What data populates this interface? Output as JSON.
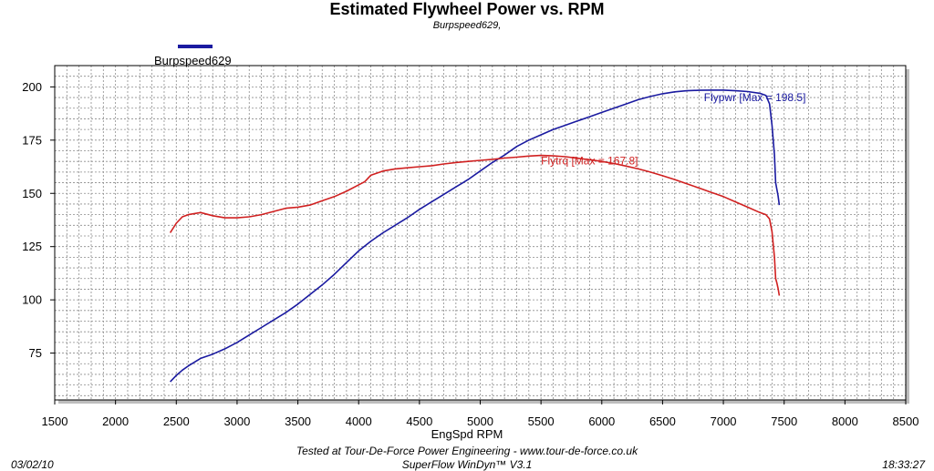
{
  "chart_data": {
    "type": "line",
    "title": "Estimated Flywheel Power vs. RPM",
    "subtitle": "Burpspeed629,",
    "xlabel": "EngSpd RPM",
    "ylabel": "",
    "xlim": [
      1500,
      8500
    ],
    "ylim": [
      53,
      210
    ],
    "xticks": [
      1500,
      2000,
      2500,
      3000,
      3500,
      4000,
      4500,
      5000,
      5500,
      6000,
      6500,
      7000,
      7500,
      8000,
      8500
    ],
    "yticks": [
      75,
      100,
      125,
      150,
      175,
      200
    ],
    "grid": true,
    "legend": {
      "position": "top-left",
      "entries": [
        {
          "label": "Burpspeed629",
          "color": "#1a1aa0"
        }
      ]
    },
    "series": [
      {
        "key": "power",
        "color": "#1a1aa0",
        "annotation": "Flypwr [Max = 198.5]",
        "x": [
          2450,
          2500,
          2550,
          2600,
          2700,
          2800,
          2900,
          3000,
          3100,
          3200,
          3300,
          3400,
          3500,
          3600,
          3700,
          3800,
          3900,
          4000,
          4100,
          4200,
          4300,
          4400,
          4500,
          4600,
          4700,
          4800,
          4900,
          5000,
          5100,
          5200,
          5300,
          5400,
          5500,
          5600,
          5700,
          5800,
          5900,
          6000,
          6100,
          6200,
          6300,
          6400,
          6500,
          6600,
          6700,
          6800,
          6900,
          7000,
          7100,
          7200,
          7300,
          7350,
          7380,
          7400,
          7420,
          7430,
          7440,
          7450,
          7460
        ],
        "values": [
          61.5,
          64.5,
          67,
          69,
          72.5,
          74.5,
          77,
          80,
          83.5,
          87,
          90.5,
          94,
          98,
          102.5,
          107,
          112,
          117.5,
          123,
          127.5,
          131.5,
          135,
          138.5,
          142.5,
          146,
          149.5,
          153,
          156.5,
          160.5,
          164.5,
          168,
          172,
          175,
          177.5,
          180,
          182,
          184,
          186,
          188,
          190,
          192,
          194,
          195.5,
          196.8,
          197.7,
          198.2,
          198.4,
          198.5,
          198.5,
          198.2,
          197.8,
          197,
          196,
          192,
          182,
          168,
          155,
          152,
          149,
          144.5
        ]
      },
      {
        "key": "torque",
        "color": "#d02020",
        "annotation": "Flytrq [Max = 167.8]",
        "x": [
          2450,
          2500,
          2550,
          2600,
          2700,
          2800,
          2900,
          3000,
          3100,
          3200,
          3300,
          3400,
          3500,
          3600,
          3700,
          3800,
          3900,
          4000,
          4050,
          4100,
          4200,
          4300,
          4400,
          4500,
          4600,
          4700,
          4800,
          4900,
          5000,
          5100,
          5200,
          5300,
          5400,
          5500,
          5600,
          5700,
          5800,
          5900,
          6000,
          6100,
          6200,
          6300,
          6400,
          6500,
          6600,
          6700,
          6800,
          6900,
          7000,
          7100,
          7200,
          7300,
          7350,
          7380,
          7400,
          7420,
          7430,
          7440,
          7450,
          7460
        ],
        "values": [
          131.5,
          136,
          139,
          140,
          141,
          139.5,
          138.5,
          138.5,
          139,
          140,
          141.5,
          143,
          143.5,
          144.5,
          146.5,
          148.5,
          151,
          154,
          155.5,
          158.5,
          160.5,
          161.5,
          162,
          162.5,
          163,
          163.8,
          164.5,
          165,
          165.5,
          166,
          166.6,
          167,
          167.5,
          167.8,
          167.6,
          167.2,
          166.5,
          165.8,
          165,
          164,
          162.8,
          161.5,
          160,
          158.3,
          156.5,
          154.5,
          152.5,
          150.5,
          148.5,
          146,
          143.5,
          141,
          140,
          138,
          132,
          120,
          110,
          108,
          105.5,
          102
        ]
      }
    ]
  },
  "footer": {
    "date": "03/02/10",
    "time": "18:33:27",
    "line1": "Tested at Tour-De-Force Power Engineering - www.tour-de-force.co.uk",
    "line2": "SuperFlow WinDyn™  V3.1"
  }
}
